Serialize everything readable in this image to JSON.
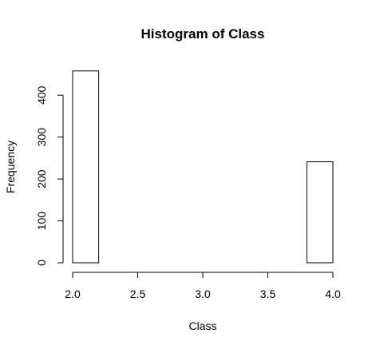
{
  "chart_data": {
    "type": "bar",
    "title": "Histogram of Class",
    "xlabel": "Class",
    "ylabel": "Frequency",
    "xlim": [
      2.0,
      4.0
    ],
    "ylim": [
      0,
      460
    ],
    "x_ticks": [
      "2.0",
      "2.5",
      "3.0",
      "3.5",
      "4.0"
    ],
    "y_ticks": [
      "0",
      "100",
      "200",
      "300",
      "400"
    ],
    "bins": [
      {
        "from": 2.0,
        "to": 2.2,
        "count": 458
      },
      {
        "from": 2.2,
        "to": 2.4,
        "count": 0
      },
      {
        "from": 2.4,
        "to": 2.6,
        "count": 0
      },
      {
        "from": 2.6,
        "to": 2.8,
        "count": 0
      },
      {
        "from": 2.8,
        "to": 3.0,
        "count": 0
      },
      {
        "from": 3.0,
        "to": 3.2,
        "count": 0
      },
      {
        "from": 3.2,
        "to": 3.4,
        "count": 0
      },
      {
        "from": 3.4,
        "to": 3.6,
        "count": 0
      },
      {
        "from": 3.6,
        "to": 3.8,
        "count": 0
      },
      {
        "from": 3.8,
        "to": 4.0,
        "count": 241
      }
    ]
  }
}
